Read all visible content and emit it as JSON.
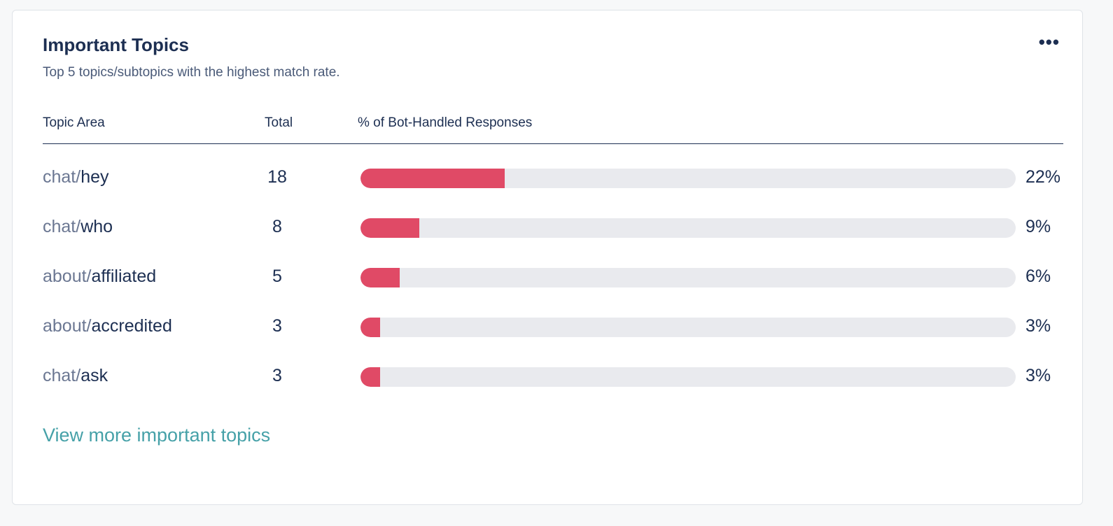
{
  "card": {
    "title": "Important Topics",
    "subtitle": "Top 5 topics/subtopics with the highest match rate.",
    "menu_icon": "more-horizontal-icon",
    "menu_label": "•••"
  },
  "table": {
    "headers": {
      "topic": "Topic Area",
      "total": "Total",
      "pct": "% of Bot-Handled Responses"
    },
    "rows": [
      {
        "parent": "chat/",
        "child": "hey",
        "total": "18",
        "pct_label": "22%",
        "pct": 22
      },
      {
        "parent": "chat/",
        "child": "who",
        "total": "8",
        "pct_label": "9%",
        "pct": 9
      },
      {
        "parent": "about/",
        "child": "affiliated",
        "total": "5",
        "pct_label": "6%",
        "pct": 6
      },
      {
        "parent": "about/",
        "child": "accredited",
        "total": "3",
        "pct_label": "3%",
        "pct": 3
      },
      {
        "parent": "chat/",
        "child": "ask",
        "total": "3",
        "pct_label": "3%",
        "pct": 3
      }
    ]
  },
  "footer": {
    "link_label": "View more important topics"
  },
  "colors": {
    "bar_fill": "#e04a66",
    "bar_track": "#e9eaee",
    "link": "#46a1a8",
    "heading": "#1d2f52"
  }
}
